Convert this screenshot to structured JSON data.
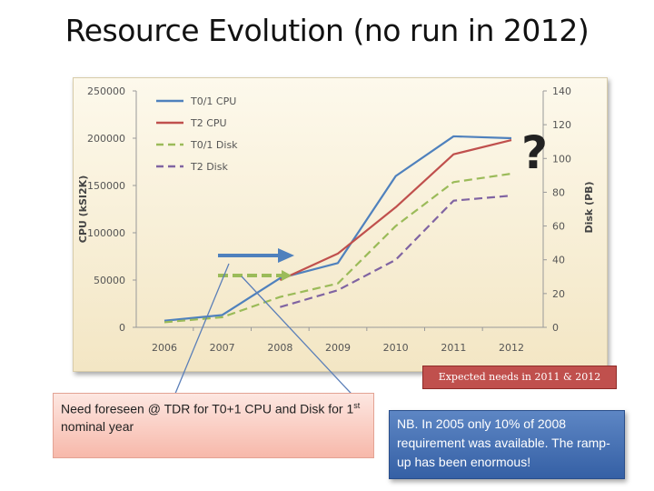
{
  "page": {
    "title": "Resource Evolution (no run in 2012)",
    "question_mark": "?",
    "expected_label": "Expected needs in 2011 & 2012",
    "note_left_main": "Need foreseen @ TDR for T0+1 CPU and Disk for 1",
    "note_left_sup": "st",
    "note_left_end": " nominal year",
    "note_right": "NB. In 2005 only 10% of 2008 requirement was available.  The ramp-up has been enormous!"
  },
  "chart_data": {
    "type": "line",
    "categories": [
      "2006",
      "2007",
      "2008",
      "2009",
      "2010",
      "2011",
      "2012"
    ],
    "y_left": {
      "label": "CPU (kSI2K)",
      "min": 0,
      "max": 250000,
      "ticks": [
        0,
        50000,
        100000,
        150000,
        200000,
        250000
      ]
    },
    "y_right": {
      "label": "Disk (PB)",
      "min": 0,
      "max": 140,
      "ticks": [
        0,
        20,
        40,
        60,
        80,
        100,
        120,
        140
      ]
    },
    "series": [
      {
        "name": "T0/1 CPU",
        "axis": "left",
        "style": "solid",
        "color": "#4f81bd",
        "values": [
          7000,
          13000,
          52000,
          68000,
          160000,
          202000,
          200000
        ]
      },
      {
        "name": "T2 CPU",
        "axis": "left",
        "style": "solid",
        "color": "#c0504d",
        "values": [
          null,
          null,
          50000,
          78000,
          127000,
          183000,
          198000
        ]
      },
      {
        "name": "T0/1 Disk",
        "axis": "right",
        "style": "dashed",
        "color": "#9bbb59",
        "values": [
          3,
          6,
          18,
          26,
          60,
          86,
          91
        ]
      },
      {
        "name": "T2 Disk",
        "axis": "right",
        "style": "dashed",
        "color": "#8064a2",
        "values": [
          null,
          null,
          12,
          22,
          40,
          75,
          78
        ]
      }
    ]
  }
}
